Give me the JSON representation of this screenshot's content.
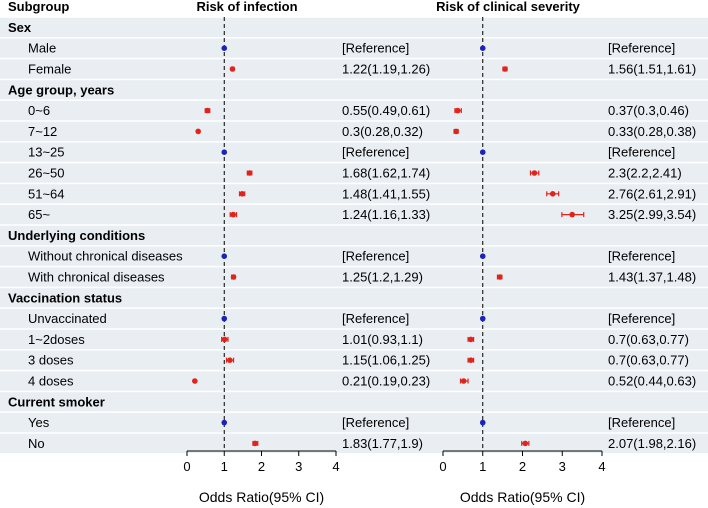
{
  "colors": {
    "row_shade": "#e9eef3",
    "separator": "#ffffff",
    "estimate": "#e0241b",
    "reference": "#1c24b8",
    "axis": "#000000"
  },
  "headers": {
    "subgroup": "Subgroup",
    "panel1": "Risk of infection",
    "panel2": "Risk of clinical severity"
  },
  "chart_data": {
    "type": "forest",
    "reference_line": 1,
    "xlim": [
      0,
      4
    ],
    "ticks": [
      0,
      1,
      2,
      3,
      4
    ],
    "xlabel": "Odds Ratio(95% CI)",
    "panels": [
      "Risk of infection",
      "Risk of clinical severity"
    ],
    "rows": [
      {
        "type": "group",
        "label": "Sex"
      },
      {
        "type": "item",
        "label": "Male",
        "reference": true,
        "infection": {
          "text": "[Reference]",
          "or": 1
        },
        "severity": {
          "text": "[Reference]",
          "or": 1
        }
      },
      {
        "type": "item",
        "label": "Female",
        "infection": {
          "text": "1.22(1.19,1.26)",
          "or": 1.22,
          "lo": 1.19,
          "hi": 1.26
        },
        "severity": {
          "text": "1.56(1.51,1.61)",
          "or": 1.56,
          "lo": 1.51,
          "hi": 1.61
        }
      },
      {
        "type": "group",
        "label": "Age group, years"
      },
      {
        "type": "item",
        "label": "0~6",
        "infection": {
          "text": "0.55(0.49,0.61)",
          "or": 0.55,
          "lo": 0.49,
          "hi": 0.61
        },
        "severity": {
          "text": "0.37(0.3,0.46)",
          "or": 0.37,
          "lo": 0.3,
          "hi": 0.46
        }
      },
      {
        "type": "item",
        "label": "7~12",
        "infection": {
          "text": "0.3(0.28,0.32)",
          "or": 0.3,
          "lo": 0.28,
          "hi": 0.32
        },
        "severity": {
          "text": "0.33(0.28,0.38)",
          "or": 0.33,
          "lo": 0.28,
          "hi": 0.38
        }
      },
      {
        "type": "item",
        "label": "13~25",
        "reference": true,
        "infection": {
          "text": "[Reference]",
          "or": 1
        },
        "severity": {
          "text": "[Reference]",
          "or": 1
        }
      },
      {
        "type": "item",
        "label": "26~50",
        "infection": {
          "text": "1.68(1.62,1.74)",
          "or": 1.68,
          "lo": 1.62,
          "hi": 1.74
        },
        "severity": {
          "text": "2.3(2.2,2.41)",
          "or": 2.3,
          "lo": 2.2,
          "hi": 2.41
        }
      },
      {
        "type": "item",
        "label": "51~64",
        "infection": {
          "text": "1.48(1.41,1.55)",
          "or": 1.48,
          "lo": 1.41,
          "hi": 1.55
        },
        "severity": {
          "text": "2.76(2.61,2.91)",
          "or": 2.76,
          "lo": 2.61,
          "hi": 2.91
        }
      },
      {
        "type": "item",
        "label": "65~",
        "infection": {
          "text": "1.24(1.16,1.33)",
          "or": 1.24,
          "lo": 1.16,
          "hi": 1.33
        },
        "severity": {
          "text": "3.25(2.99,3.54)",
          "or": 3.25,
          "lo": 2.99,
          "hi": 3.54
        }
      },
      {
        "type": "group",
        "label": "Underlying conditions"
      },
      {
        "type": "item",
        "label": "Without chronical diseases",
        "reference": true,
        "infection": {
          "text": "[Reference]",
          "or": 1
        },
        "severity": {
          "text": "[Reference]",
          "or": 1
        }
      },
      {
        "type": "item",
        "label": "With chronical diseases",
        "infection": {
          "text": "1.25(1.2,1.29)",
          "or": 1.25,
          "lo": 1.2,
          "hi": 1.29
        },
        "severity": {
          "text": "1.43(1.37,1.48)",
          "or": 1.43,
          "lo": 1.37,
          "hi": 1.48
        }
      },
      {
        "type": "group",
        "label": "Vaccination status"
      },
      {
        "type": "item",
        "label": "Unvaccinated",
        "reference": true,
        "infection": {
          "text": "[Reference]",
          "or": 1
        },
        "severity": {
          "text": "[Reference]",
          "or": 1
        }
      },
      {
        "type": "item",
        "label": "1~2doses",
        "infection": {
          "text": "1.01(0.93,1.1)",
          "or": 1.01,
          "lo": 0.93,
          "hi": 1.1
        },
        "severity": {
          "text": "0.7(0.63,0.77)",
          "or": 0.7,
          "lo": 0.63,
          "hi": 0.77
        }
      },
      {
        "type": "item",
        "label": "3 doses",
        "infection": {
          "text": "1.15(1.06,1.25)",
          "or": 1.15,
          "lo": 1.06,
          "hi": 1.25
        },
        "severity": {
          "text": "0.7(0.63,0.77)",
          "or": 0.7,
          "lo": 0.63,
          "hi": 0.77
        }
      },
      {
        "type": "item",
        "label": "4 doses",
        "infection": {
          "text": "0.21(0.19,0.23)",
          "or": 0.21,
          "lo": 0.19,
          "hi": 0.23
        },
        "severity": {
          "text": "0.52(0.44,0.63)",
          "or": 0.52,
          "lo": 0.44,
          "hi": 0.63
        }
      },
      {
        "type": "group",
        "label": "Current smoker"
      },
      {
        "type": "item",
        "label": "Yes",
        "reference": true,
        "infection": {
          "text": "[Reference]",
          "or": 1
        },
        "severity": {
          "text": "[Reference]",
          "or": 1
        }
      },
      {
        "type": "item",
        "label": "No",
        "infection": {
          "text": "1.83(1.77,1.9)",
          "or": 1.83,
          "lo": 1.77,
          "hi": 1.9
        },
        "severity": {
          "text": "2.07(1.98,2.16)",
          "or": 2.07,
          "lo": 1.98,
          "hi": 2.16
        }
      }
    ]
  }
}
